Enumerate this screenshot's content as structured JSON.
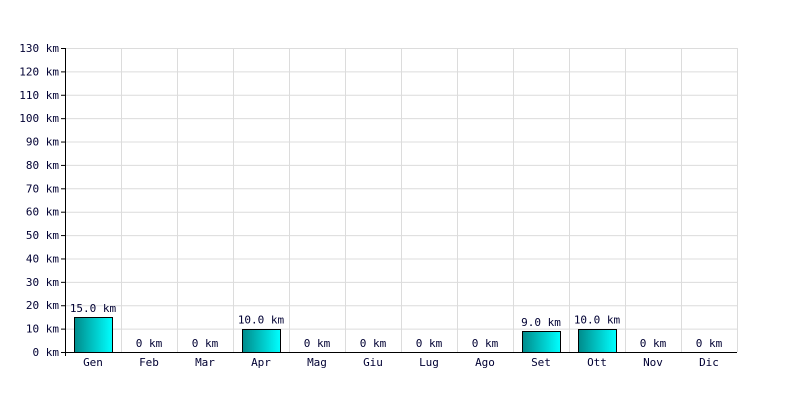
{
  "chart_data": {
    "type": "bar",
    "title": "",
    "xlabel": "",
    "ylabel": "",
    "categories": [
      "Gen",
      "Feb",
      "Mar",
      "Apr",
      "Mag",
      "Giu",
      "Lug",
      "Ago",
      "Set",
      "Ott",
      "Nov",
      "Dic"
    ],
    "values": [
      15,
      0,
      0,
      10,
      0,
      0,
      0,
      0,
      9,
      10,
      0,
      0
    ],
    "data_labels": [
      "15.0 km",
      "0 km",
      "0 km",
      "10.0 km",
      "0 km",
      "0 km",
      "0 km",
      "0 km",
      "9.0 km",
      "10.0 km",
      "0 km",
      "0 km"
    ],
    "ylim": [
      0,
      130
    ],
    "yticks": [
      0,
      10,
      20,
      30,
      40,
      50,
      60,
      70,
      80,
      90,
      100,
      110,
      120,
      130
    ],
    "ytick_labels": [
      "0 km",
      "10 km",
      "20 km",
      "30 km",
      "40 km",
      "50 km",
      "60 km",
      "70 km",
      "80 km",
      "90 km",
      "100 km",
      "110 km",
      "120 km",
      "130 km"
    ],
    "grid": true,
    "legend": "none",
    "colors": {
      "bar_dark": "#008b8b",
      "bar_light": "#00ffff",
      "bar_edge": "#000000",
      "grid": "#dcdcdc",
      "axis": "#000000",
      "text": "#000033"
    }
  }
}
